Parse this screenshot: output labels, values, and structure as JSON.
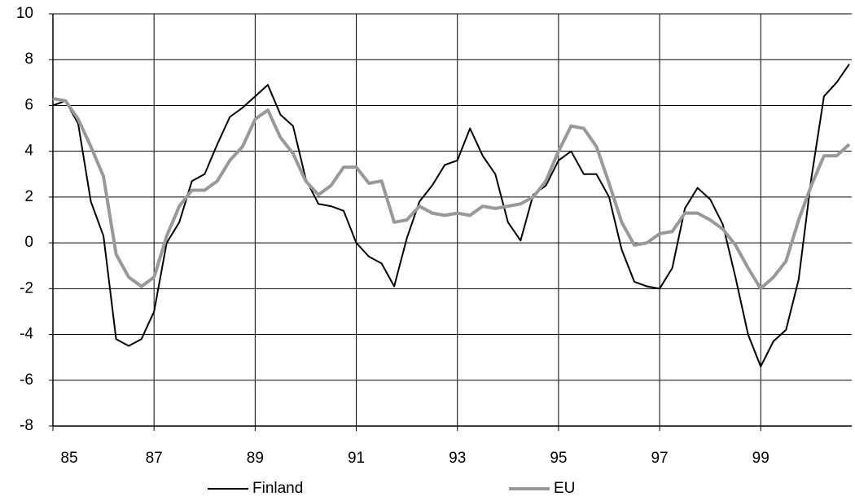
{
  "chart_data": {
    "type": "line",
    "x": [
      85,
      85.25,
      85.5,
      85.75,
      86,
      86.25,
      86.5,
      86.75,
      87,
      87.25,
      87.5,
      87.75,
      88,
      88.25,
      88.5,
      88.75,
      89,
      89.25,
      89.5,
      89.75,
      90,
      90.25,
      90.5,
      90.75,
      91,
      91.25,
      91.5,
      91.75,
      92,
      92.25,
      92.5,
      92.75,
      93,
      93.25,
      93.5,
      93.75,
      94,
      94.25,
      94.5,
      94.75,
      95,
      95.25,
      95.5,
      95.75,
      96,
      96.25,
      96.5,
      96.75,
      97,
      97.25,
      97.5,
      97.75,
      98,
      98.25,
      98.5,
      98.75,
      99,
      99.25,
      99.5,
      99.75,
      100,
      100.25,
      100.5,
      100.75
    ],
    "series": [
      {
        "name": "Finland",
        "color": "#000000",
        "width": 2,
        "values": [
          6.0,
          6.2,
          5.2,
          1.8,
          0.3,
          -4.2,
          -4.5,
          -4.2,
          -3.0,
          0.0,
          0.9,
          2.7,
          3.0,
          4.3,
          5.5,
          5.9,
          6.4,
          6.9,
          5.6,
          5.1,
          2.8,
          1.7,
          1.6,
          1.4,
          0.0,
          -0.6,
          -0.9,
          -1.9,
          0.2,
          1.8,
          2.5,
          3.4,
          3.6,
          5.0,
          3.8,
          3.0,
          0.9,
          0.1,
          2.1,
          2.5,
          3.6,
          4.0,
          3.0,
          3.0,
          2.0,
          -0.3,
          -1.7,
          -1.9,
          -2.0,
          -1.1,
          1.5,
          2.4,
          1.9,
          0.8,
          -1.5,
          -4.0,
          -5.4,
          -4.3,
          -3.8,
          -1.6,
          2.8,
          6.4,
          7.0,
          7.8
        ]
      },
      {
        "name": "EU",
        "color": "#999999",
        "width": 4,
        "values": [
          6.3,
          6.2,
          5.4,
          4.2,
          2.9,
          -0.5,
          -1.5,
          -1.9,
          -1.5,
          0.3,
          1.6,
          2.3,
          2.3,
          2.7,
          3.6,
          4.2,
          5.4,
          5.8,
          4.6,
          3.9,
          2.7,
          2.1,
          2.5,
          3.3,
          3.3,
          2.6,
          2.7,
          0.9,
          1.0,
          1.6,
          1.3,
          1.2,
          1.3,
          1.2,
          1.6,
          1.5,
          1.6,
          1.7,
          2.0,
          2.7,
          4.0,
          5.1,
          5.0,
          4.2,
          2.6,
          0.9,
          -0.1,
          0.0,
          0.4,
          0.5,
          1.3,
          1.3,
          1.0,
          0.6,
          -0.1,
          -1.1,
          -2.0,
          -1.5,
          -0.8,
          1.0,
          2.5,
          3.8,
          3.8,
          4.3
        ]
      }
    ],
    "xlim": [
      85,
      100.8
    ],
    "xticks": [
      85,
      87,
      89,
      91,
      93,
      95,
      97,
      99
    ],
    "ylim": [
      -8,
      10
    ],
    "yticks": [
      -8,
      -6,
      -4,
      -2,
      0,
      2,
      4,
      6,
      8,
      10
    ],
    "grid": true,
    "legend": "bottom"
  }
}
